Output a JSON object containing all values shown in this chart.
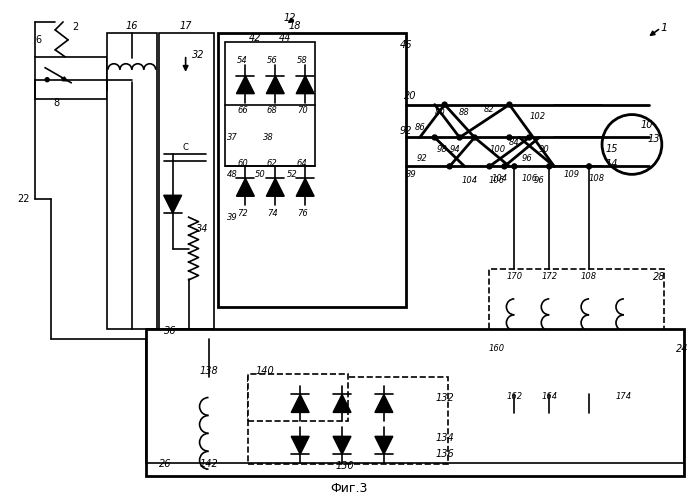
{
  "title": "Фиг.3",
  "bg": "#ffffff",
  "lc": "#000000",
  "lw": 1.2,
  "lw2": 2.0,
  "fw": 6.99,
  "fh": 4.96,
  "dpi": 100
}
